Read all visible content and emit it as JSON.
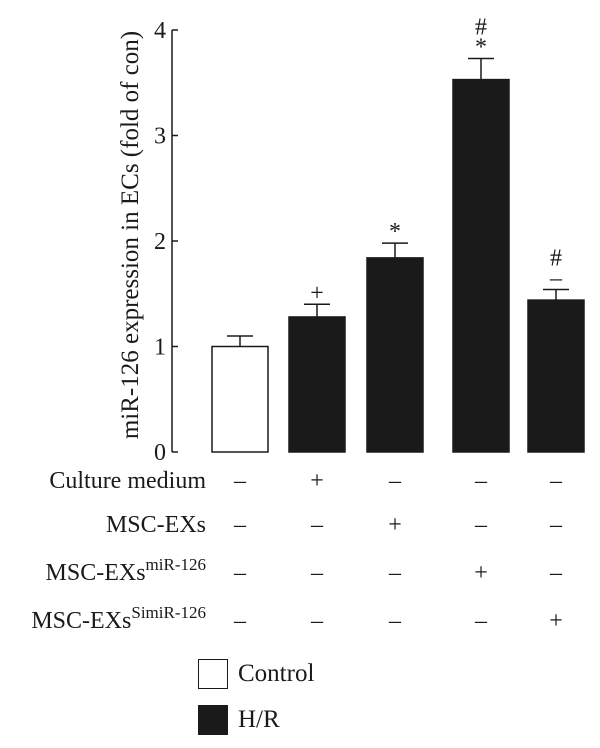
{
  "chart_data": {
    "type": "bar",
    "ylabel": "miR-126 expression in ECs (fold of con)",
    "ylim": [
      0,
      4
    ],
    "yticks": [
      0,
      1,
      2,
      3,
      4
    ],
    "bars": [
      {
        "value": 1.0,
        "error": 0.1,
        "group": "Control",
        "annotation": ""
      },
      {
        "value": 1.28,
        "error": 0.12,
        "group": "H/R",
        "annotation": "+"
      },
      {
        "value": 1.84,
        "error": 0.14,
        "group": "H/R",
        "annotation": "*"
      },
      {
        "value": 3.53,
        "error": 0.2,
        "group": "H/R",
        "annotation": "#\n*"
      },
      {
        "value": 1.44,
        "error": 0.1,
        "group": "H/R",
        "annotation": "#\n–"
      }
    ],
    "treatment_rows": [
      {
        "label": "Culture medium",
        "sup": "",
        "marks": [
          "–",
          "+",
          "–",
          "–",
          "–"
        ]
      },
      {
        "label": "MSC-EXs",
        "sup": "",
        "marks": [
          "–",
          "–",
          "+",
          "–",
          "–"
        ]
      },
      {
        "label": "MSC-EXs",
        "sup": "miR-126",
        "marks": [
          "–",
          "–",
          "–",
          "+",
          "–"
        ]
      },
      {
        "label": "MSC-EXs",
        "sup": "SimiR-126",
        "marks": [
          "–",
          "–",
          "–",
          "–",
          "+"
        ]
      }
    ],
    "legend": [
      {
        "label": "Control",
        "color": "#ffffff"
      },
      {
        "label": "H/R",
        "color": "#1a1a1a"
      }
    ],
    "colors": {
      "Control": "#ffffff",
      "H/R": "#1a1a1a",
      "outline": "#1a1a1a"
    }
  }
}
